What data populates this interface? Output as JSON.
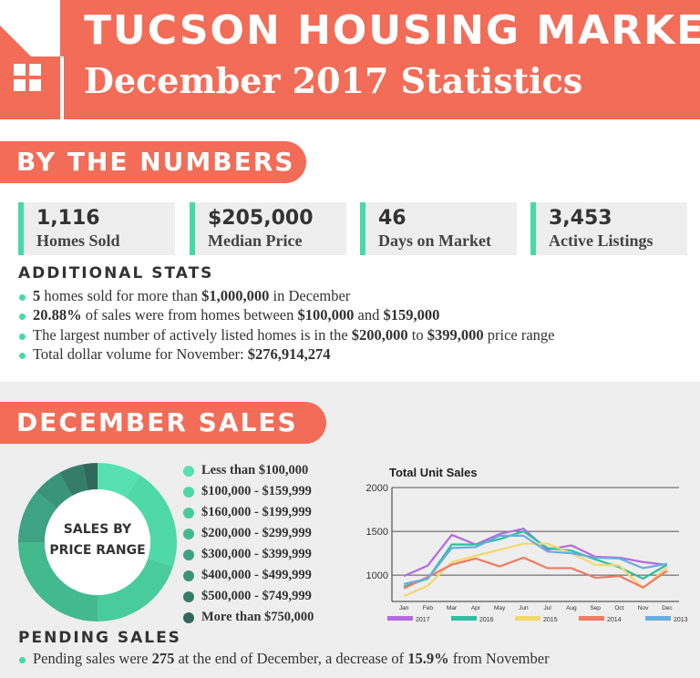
{
  "header": {
    "title": "TUCSON HOUSING MARKET",
    "subtitle": "December 2017 Statistics",
    "colors": {
      "brand": "#f26c57",
      "accent": "#47d9a7"
    },
    "icon": "house-window-icon"
  },
  "by_the_numbers": {
    "heading": "BY THE NUMBERS",
    "stats": [
      {
        "value": "1,116",
        "label": "Homes Sold"
      },
      {
        "value": "$205,000",
        "label": "Median Price"
      },
      {
        "value": "46",
        "label": "Days on Market"
      },
      {
        "value": "3,453",
        "label": "Active Listings"
      }
    ]
  },
  "additional_stats": {
    "heading": "ADDITIONAL STATS",
    "items": [
      [
        "5",
        " homes sold for more than ",
        "$1,000,000",
        " in December"
      ],
      [
        "20.88%",
        " of sales were from homes between ",
        "$100,000",
        " and ",
        "$159,000"
      ],
      [
        "The largest number of actively listed homes is in the ",
        "$200,000",
        " to ",
        "$399,000",
        " price range"
      ],
      [
        "Total dollar volume for November: ",
        "$276,914,274"
      ]
    ]
  },
  "december_sales": {
    "heading": "DECEMBER SALES",
    "donut_label_line1": "SALES BY",
    "donut_label_line2": "PRICE RANGE",
    "legend": [
      {
        "label": "Less than $100,000",
        "color": "#57e0b2"
      },
      {
        "label": "$100,000 - $159,999",
        "color": "#4fd8a8"
      },
      {
        "label": "$160,000 - $199,999",
        "color": "#48cc9c"
      },
      {
        "label": "$200,000 - $299,999",
        "color": "#43b98e"
      },
      {
        "label": "$300,000 - $399,999",
        "color": "#3ea382"
      },
      {
        "label": "$400,000 - $499,999",
        "color": "#3a9478"
      },
      {
        "label": "$500,000 - $749,999",
        "color": "#357d68"
      },
      {
        "label": "More than $750,000",
        "color": "#30695b"
      }
    ]
  },
  "pending_sales": {
    "heading": "PENDING SALES",
    "items": [
      [
        "Pending sales were ",
        "275",
        " at the end of December, a decrease of ",
        "15.9%",
        " from November"
      ]
    ]
  },
  "chart_data": [
    {
      "type": "pie",
      "title": "SALES BY PRICE RANGE",
      "categories": [
        "Less than $100,000",
        "$100,000 - $159,999",
        "$160,000 - $199,999",
        "$200,000 - $299,999",
        "$300,000 - $399,999",
        "$400,000 - $499,999",
        "$500,000 - $749,999",
        "More than $750,000"
      ],
      "values": [
        9,
        21,
        20,
        25,
        11,
        6,
        5,
        3
      ],
      "donut": true
    },
    {
      "type": "line",
      "title": "Total Unit Sales",
      "categories": [
        "Jan",
        "Feb",
        "Mar",
        "Apr",
        "May",
        "Jun",
        "Jul",
        "Aug",
        "Sep",
        "Oct",
        "Nov",
        "Dec"
      ],
      "ylim": [
        700,
        2000
      ],
      "yticks": [
        1000,
        1500,
        2000
      ],
      "grid": true,
      "legend": "bottom",
      "series": [
        {
          "name": "2017",
          "color": "#b66ae0",
          "values": [
            990,
            1110,
            1460,
            1350,
            1470,
            1530,
            1290,
            1340,
            1210,
            1200,
            1150,
            1116
          ]
        },
        {
          "name": "2016",
          "color": "#2fbfa0",
          "values": [
            870,
            960,
            1350,
            1350,
            1410,
            1500,
            1310,
            1280,
            1180,
            1090,
            960,
            1120
          ]
        },
        {
          "name": "2015",
          "color": "#f5d86a",
          "values": [
            760,
            880,
            1150,
            1220,
            1290,
            1360,
            1360,
            1250,
            1120,
            1110,
            850,
            1090
          ]
        },
        {
          "name": "2014",
          "color": "#f07a63",
          "values": [
            850,
            980,
            1120,
            1190,
            1100,
            1200,
            1080,
            1080,
            970,
            990,
            860,
            1050
          ]
        },
        {
          "name": "2013",
          "color": "#66aee0",
          "values": [
            900,
            960,
            1310,
            1320,
            1450,
            1450,
            1270,
            1250,
            1200,
            1190,
            1080,
            1130
          ]
        }
      ]
    }
  ]
}
